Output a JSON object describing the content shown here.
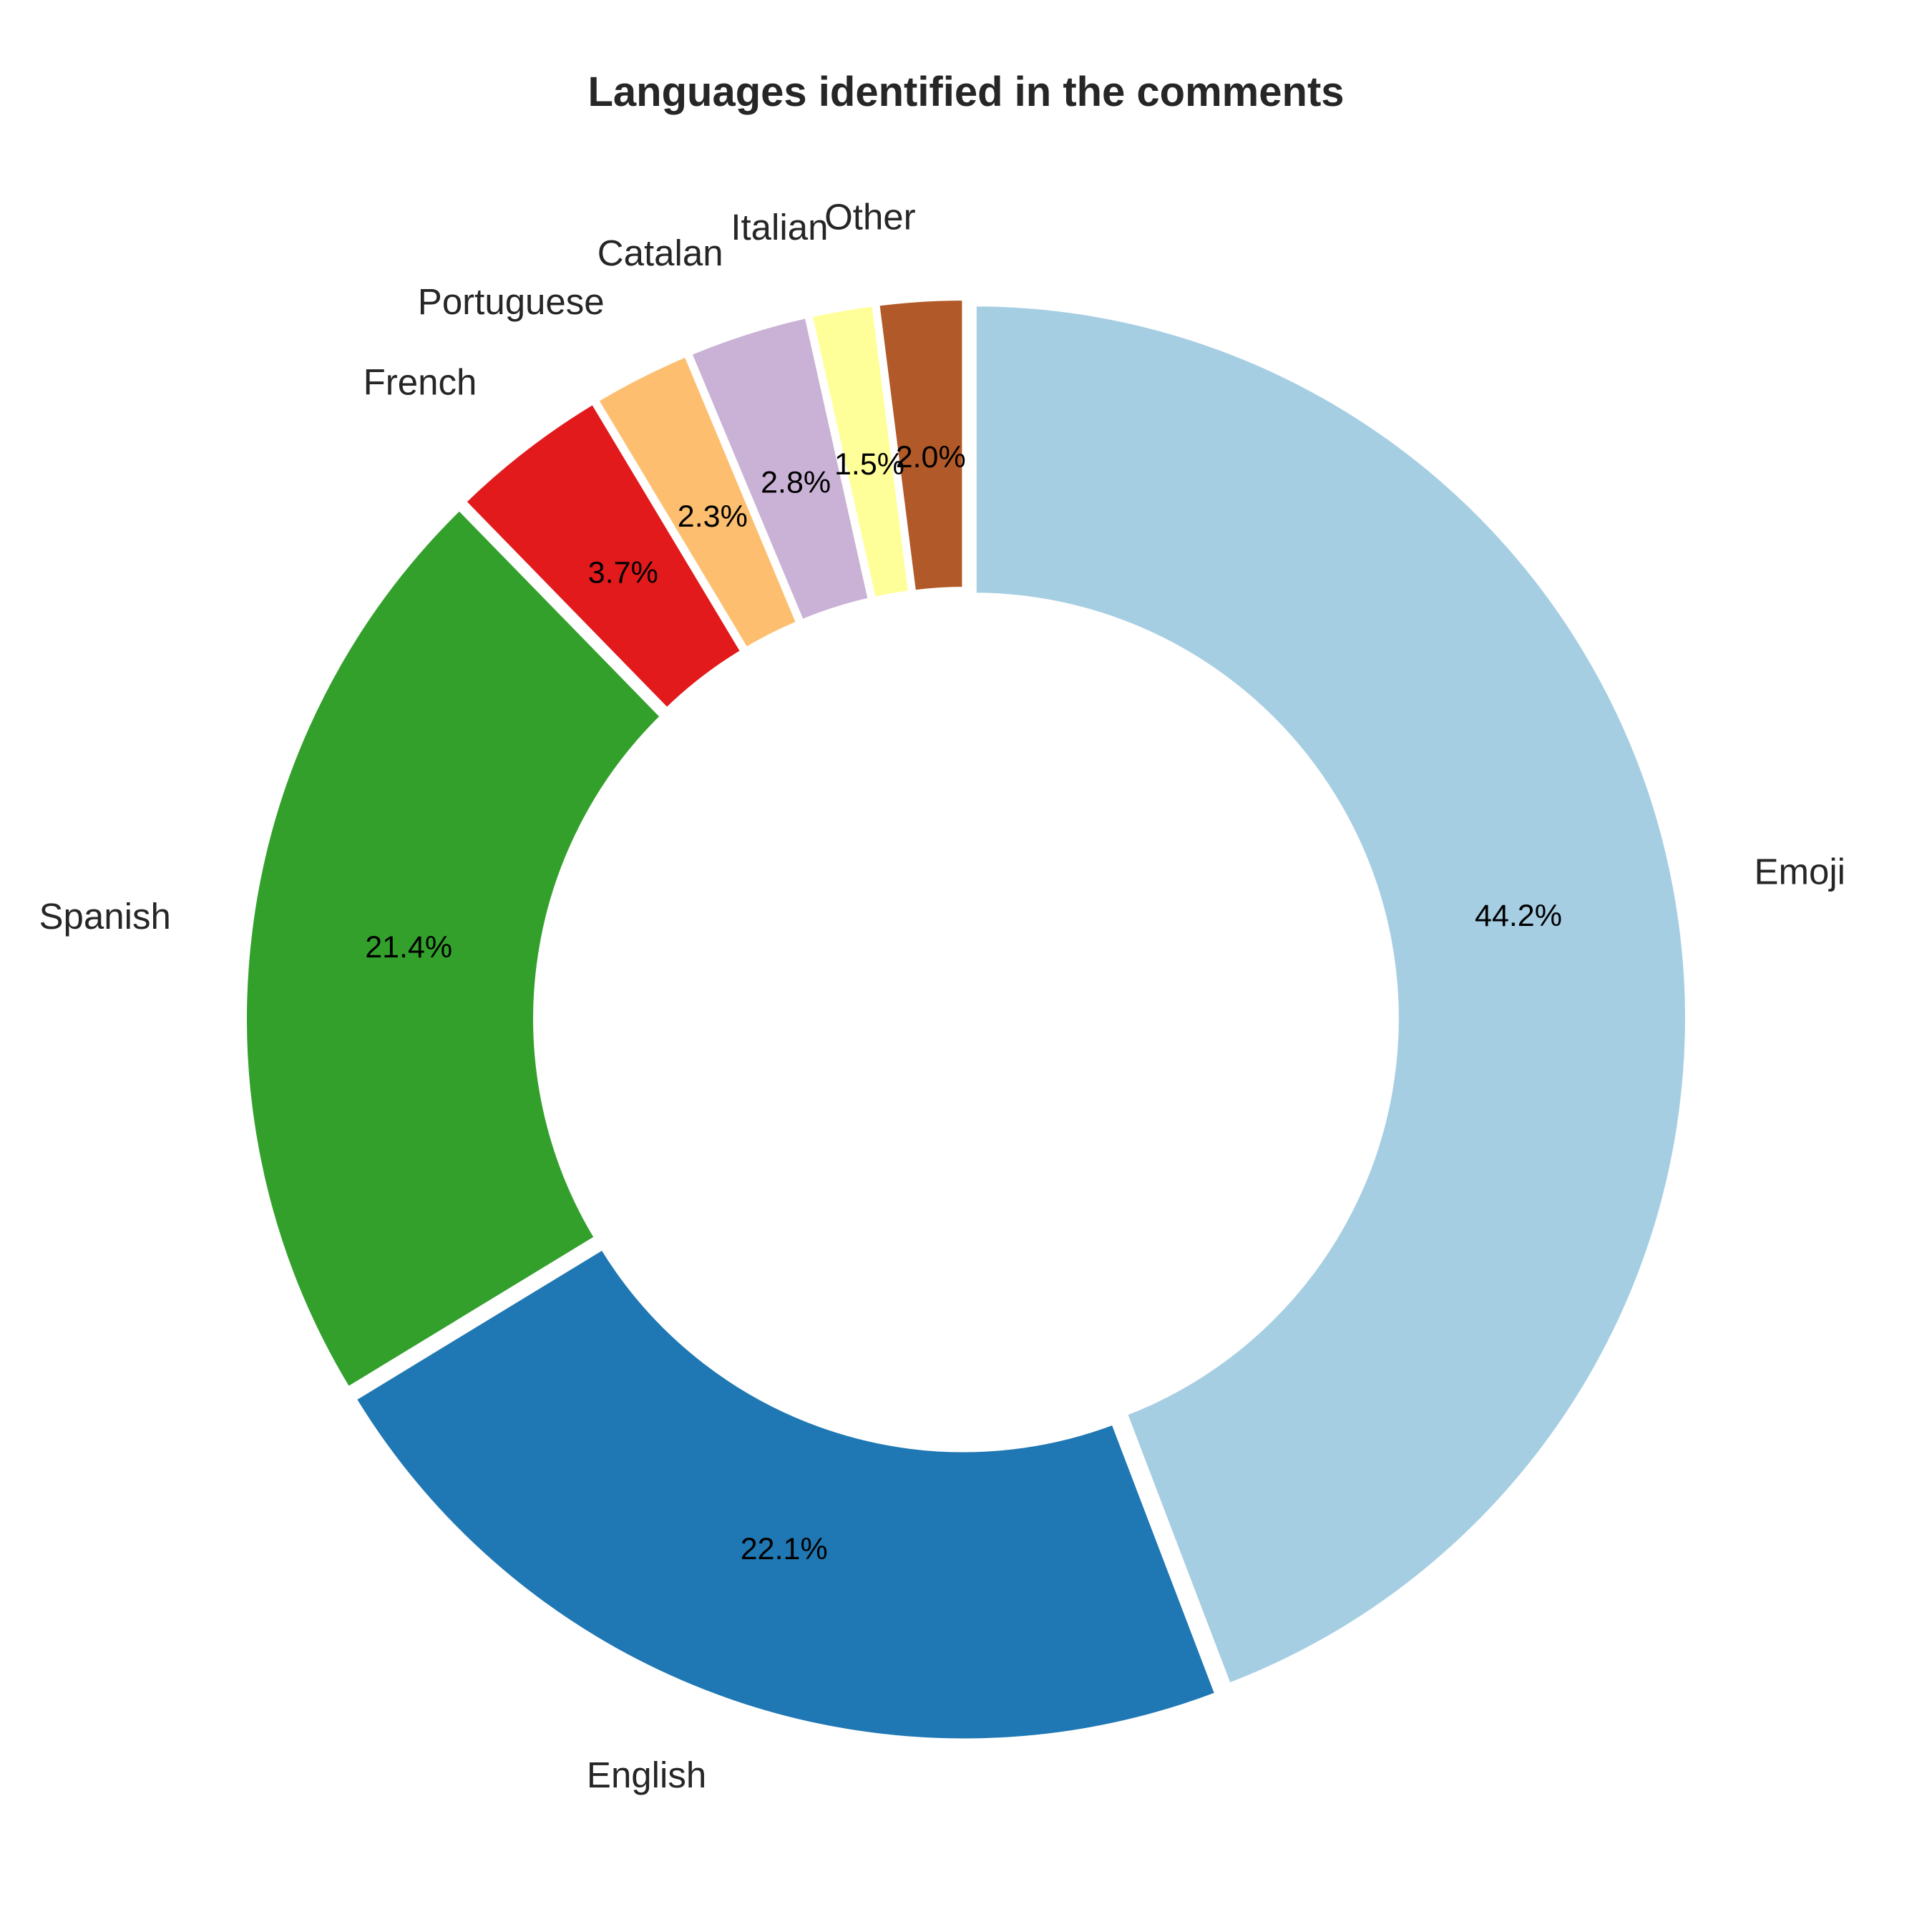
{
  "chart_data": {
    "type": "pie",
    "title": "Languages identified in the comments",
    "donut": true,
    "start_angle_deg": 90,
    "direction": "clockwise",
    "categories": [
      "Emoji",
      "English",
      "Spanish",
      "French",
      "Portuguese",
      "Catalan",
      "Italian",
      "Other"
    ],
    "values": [
      44.2,
      22.1,
      21.4,
      3.7,
      2.3,
      2.8,
      1.5,
      2.0
    ],
    "value_labels": [
      "44.2%",
      "22.1%",
      "21.4%",
      "3.7%",
      "2.3%",
      "2.8%",
      "1.5%",
      "2.0%"
    ],
    "colors": [
      "#a6cee3",
      "#1f78b4",
      "#33a02c",
      "#e31a1c",
      "#fdbf6f",
      "#cab2d6",
      "#ffff99",
      "#b15928"
    ],
    "legend": "none"
  }
}
